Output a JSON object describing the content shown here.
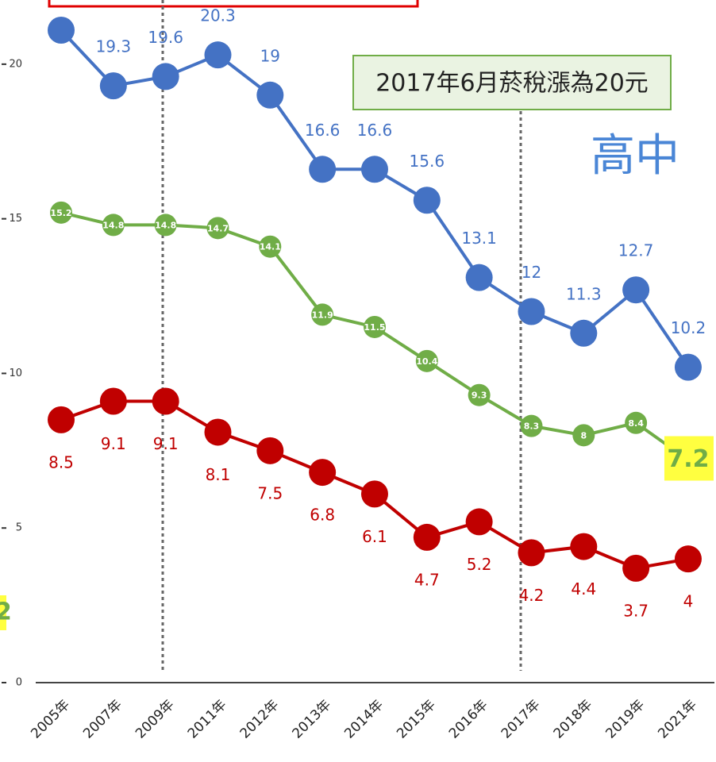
{
  "chart_data": {
    "type": "line",
    "categories": [
      "2005年",
      "2007年",
      "2009年",
      "2011年",
      "2012年",
      "2013年",
      "2014年",
      "2015年",
      "2016年",
      "2017年",
      "2018年",
      "2019年",
      "2021年"
    ],
    "series": [
      {
        "color": "#4472c4",
        "values": [
          21.1,
          19.3,
          19.6,
          20.3,
          19,
          16.6,
          16.6,
          15.6,
          13.1,
          12,
          11.3,
          12.7,
          10.2
        ],
        "value_labels": [
          null,
          "19.3",
          "19.6",
          "20.3",
          "19",
          "16.6",
          "16.6",
          "15.6",
          "13.1",
          "12",
          "11.3",
          "12.7",
          "10.2"
        ]
      },
      {
        "color": "#70ad47",
        "values": [
          15.2,
          14.8,
          14.8,
          14.7,
          14.1,
          11.9,
          11.5,
          10.4,
          9.3,
          8.3,
          8,
          8.4,
          7.2
        ]
      },
      {
        "color": "#c00000",
        "values": [
          8.5,
          9.1,
          9.1,
          8.1,
          7.5,
          6.8,
          6.1,
          4.7,
          5.2,
          4.2,
          4.4,
          3.7,
          4
        ]
      }
    ],
    "ylim": [
      0,
      21.1
    ],
    "yticks": [
      0,
      5,
      10,
      15,
      20
    ],
    "annotations": [
      "2017年6月菸稅漲為20元",
      "高中",
      "2"
    ]
  }
}
